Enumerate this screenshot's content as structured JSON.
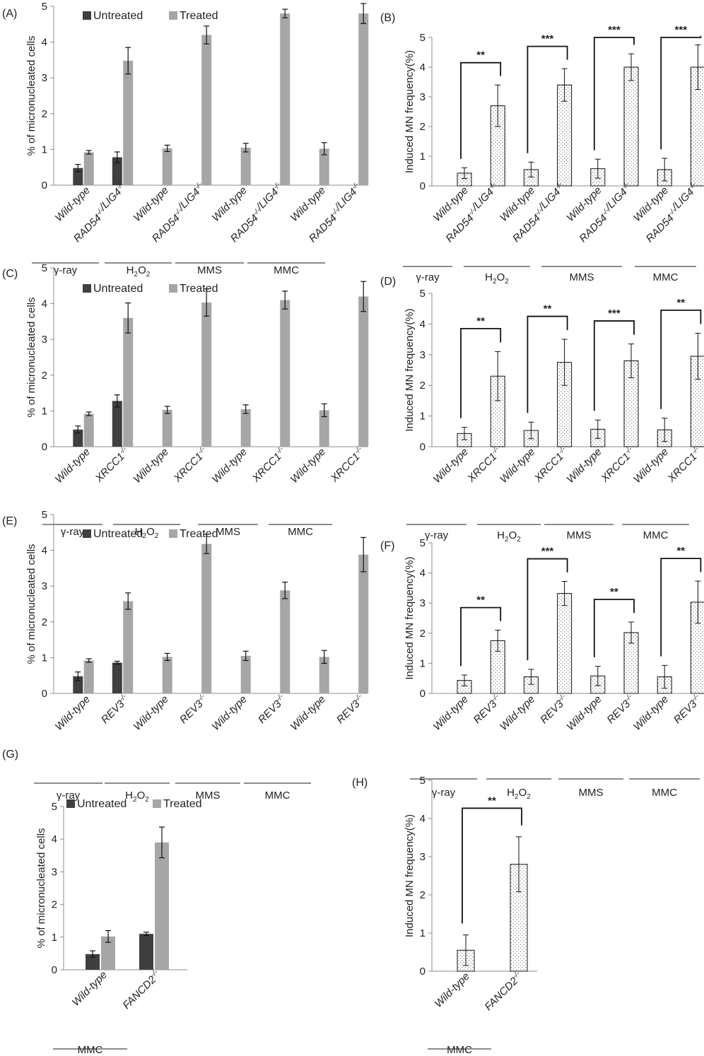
{
  "colors": {
    "untreated": "#3f3f3f",
    "treated": "#a6a6a6",
    "axis": "#8c8c8c",
    "ink": "#111111",
    "dots": "#6e6e6e"
  },
  "chart_data": [
    {
      "panel": "(A)",
      "type": "bar",
      "ylabel": "% of micronucleated cells",
      "ylim": [
        0,
        5
      ],
      "yticks": [
        "0",
        "1",
        "2",
        "3",
        "4",
        "5"
      ],
      "legend": [
        "Untreated",
        "Treated"
      ],
      "categories": [
        "Wild-type",
        "RAD54-/-/LIG4-/-",
        "Wild-type",
        "RAD54-/-/LIG4-/-",
        "Wild-type",
        "RAD54-/-/LIG4-/-",
        "Wild-type",
        "RAD54-/-/LIG4-/-"
      ],
      "series": [
        {
          "name": "Untreated",
          "values": [
            0.48,
            0.78,
            null,
            null,
            null,
            null,
            null,
            null
          ],
          "errors": [
            0.1,
            0.15,
            null,
            null,
            null,
            null,
            null,
            null
          ]
        },
        {
          "name": "Treated",
          "values": [
            0.92,
            3.48,
            1.03,
            4.2,
            1.05,
            4.8,
            1.02,
            4.8
          ],
          "errors": [
            0.05,
            0.37,
            0.09,
            0.25,
            0.12,
            0.12,
            0.17,
            0.28
          ]
        }
      ],
      "groups": [
        "γ-ray",
        "H2O2",
        "MMS",
        "MMC"
      ]
    },
    {
      "panel": "(B)",
      "type": "bar",
      "ylabel": "Induced MN frequency(%)",
      "ylim": [
        0,
        5
      ],
      "yticks": [
        "0",
        "1",
        "2",
        "3",
        "4",
        "5"
      ],
      "categories": [
        "Wild-type",
        "RAD54-/-/LIG4-/-",
        "Wild-type",
        "RAD54-/-/LIG4-/-",
        "Wild-type",
        "RAD54-/-/LIG4-/-",
        "Wild-type",
        "RAD54-/-/LIG4-/-"
      ],
      "values": [
        0.43,
        2.7,
        0.55,
        3.4,
        0.58,
        4.0,
        0.55,
        4.0
      ],
      "errors": [
        0.18,
        0.7,
        0.25,
        0.55,
        0.32,
        0.45,
        0.38,
        0.75
      ],
      "significance": [
        "**",
        "***",
        "***",
        "***"
      ],
      "groups": [
        "γ-ray",
        "H2O2",
        "MMS",
        "MMC"
      ]
    },
    {
      "panel": "(C)",
      "type": "bar",
      "ylabel": "% of micronucleated cells",
      "ylim": [
        0,
        5
      ],
      "yticks": [
        "0",
        "1",
        "2",
        "3",
        "4",
        "5"
      ],
      "legend": [
        "Untreated",
        "Treated"
      ],
      "categories": [
        "Wild-type",
        "XRCC1-/-",
        "Wild-type",
        "XRCC1-/-",
        "Wild-type",
        "XRCC1-/-",
        "Wild-type",
        "XRCC1-/-"
      ],
      "series": [
        {
          "name": "Untreated",
          "values": [
            0.48,
            1.28,
            null,
            null,
            null,
            null,
            null,
            null
          ],
          "errors": [
            0.1,
            0.17,
            null,
            null,
            null,
            null,
            null,
            null
          ]
        },
        {
          "name": "Treated",
          "values": [
            0.92,
            3.6,
            1.03,
            4.03,
            1.05,
            4.1,
            1.02,
            4.2
          ],
          "errors": [
            0.05,
            0.42,
            0.1,
            0.38,
            0.12,
            0.25,
            0.18,
            0.42
          ]
        }
      ],
      "groups": [
        "γ-ray",
        "H2O2",
        "MMS",
        "MMC"
      ]
    },
    {
      "panel": "(D)",
      "type": "bar",
      "ylabel": "Induced MN frequency(%)",
      "ylim": [
        0,
        5
      ],
      "yticks": [
        "0",
        "1",
        "2",
        "3",
        "4",
        "5"
      ],
      "categories": [
        "Wild-type",
        "XRCC1-/-",
        "Wild-type",
        "XRCC1-/-",
        "Wild-type",
        "XRCC1-/-",
        "Wild-type",
        "XRCC1-/-"
      ],
      "values": [
        0.43,
        2.3,
        0.53,
        2.75,
        0.57,
        2.8,
        0.55,
        2.95
      ],
      "errors": [
        0.2,
        0.8,
        0.27,
        0.75,
        0.3,
        0.55,
        0.38,
        0.75
      ],
      "significance": [
        "**",
        "**",
        "***",
        "**"
      ],
      "groups": [
        "γ-ray",
        "H2O2",
        "MMS",
        "MMC"
      ]
    },
    {
      "panel": "(E)",
      "type": "bar",
      "ylabel": "% of micronucleated cells",
      "ylim": [
        0,
        5
      ],
      "yticks": [
        "0",
        "1",
        "2",
        "3",
        "4",
        "5"
      ],
      "legend": [
        "Untreated",
        "Treated"
      ],
      "categories": [
        "Wild-type",
        "REV3-/-",
        "Wild-type",
        "REV3-/-",
        "Wild-type",
        "REV3-/-",
        "Wild-type",
        "REV3-/-"
      ],
      "series": [
        {
          "name": "Untreated",
          "values": [
            0.48,
            0.86,
            null,
            null,
            null,
            null,
            null,
            null
          ],
          "errors": [
            0.12,
            0.04,
            null,
            null,
            null,
            null,
            null,
            null
          ]
        },
        {
          "name": "Treated",
          "values": [
            0.92,
            2.58,
            1.02,
            4.18,
            1.05,
            2.88,
            1.02,
            3.88
          ],
          "errors": [
            0.05,
            0.23,
            0.1,
            0.27,
            0.13,
            0.23,
            0.18,
            0.48
          ]
        }
      ],
      "groups": [
        "γ-ray",
        "H2O2",
        "MMS",
        "MMC"
      ]
    },
    {
      "panel": "(F)",
      "type": "bar",
      "ylabel": "Induced MN frequency(%)",
      "ylim": [
        0,
        5
      ],
      "yticks": [
        "0",
        "1",
        "2",
        "3",
        "4",
        "5"
      ],
      "categories": [
        "Wild-type",
        "REV3-/-",
        "Wild-type",
        "REV3-/-",
        "Wild-type",
        "REV3-/-",
        "Wild-type",
        "REV3-/-"
      ],
      "values": [
        0.43,
        1.75,
        0.55,
        3.32,
        0.58,
        2.02,
        0.55,
        3.03
      ],
      "errors": [
        0.18,
        0.35,
        0.25,
        0.4,
        0.32,
        0.35,
        0.38,
        0.7
      ],
      "significance": [
        "**",
        "***",
        "**",
        "**"
      ],
      "groups": [
        "γ-ray",
        "H2O2",
        "MMS",
        "MMC"
      ]
    },
    {
      "panel": "(G)",
      "type": "bar",
      "ylabel": "% of micronucleated cells",
      "ylim": [
        0,
        5
      ],
      "yticks": [
        "0",
        "1",
        "2",
        "3",
        "4",
        "5"
      ],
      "legend": [
        "Untreated",
        "Treated"
      ],
      "categories": [
        "Wild-type",
        "FANCD2-/-"
      ],
      "series": [
        {
          "name": "Untreated",
          "values": [
            0.48,
            1.1
          ],
          "errors": [
            0.1,
            0.05
          ]
        },
        {
          "name": "Treated",
          "values": [
            1.02,
            3.9
          ],
          "errors": [
            0.18,
            0.47
          ]
        }
      ],
      "groups": [
        "MMC"
      ]
    },
    {
      "panel": "(H)",
      "type": "bar",
      "ylabel": "Induced MN frequency(%)",
      "ylim": [
        0,
        5
      ],
      "yticks": [
        "0",
        "1",
        "2",
        "3",
        "4",
        "5"
      ],
      "categories": [
        "Wild-type",
        "FANCD2-/-"
      ],
      "values": [
        0.55,
        2.8
      ],
      "errors": [
        0.4,
        0.72
      ],
      "significance": [
        "**"
      ],
      "groups": [
        "MMC"
      ]
    }
  ]
}
